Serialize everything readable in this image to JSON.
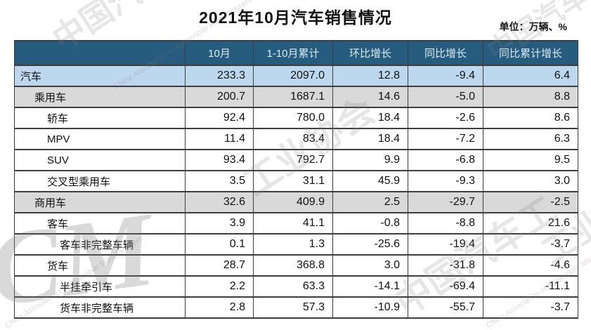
{
  "title": "2021年10月汽车销售情况",
  "unit_label": "单位：万辆、%",
  "watermark": {
    "cn": "中国汽车工业协会",
    "cn_short": "工业协会",
    "cn_mid": "中国汽车工",
    "en": "China Association of Automobile Manufacturers",
    "logo": "CM"
  },
  "colors": {
    "header_bg": "#265C7D",
    "header_text": "#DCEAF5",
    "row_highlight_blue": "#BDD7EE",
    "row_highlight_gray": "#D9D9D9",
    "border": "#3D3D3D"
  },
  "chart_data": {
    "type": "table",
    "title": "2021年10月汽车销售情况",
    "unit": "万辆、%",
    "columns": [
      "",
      "10月",
      "1-10月累计",
      "环比增长",
      "同比增长",
      "同比累计增长"
    ],
    "rows": [
      {
        "label": "汽车",
        "indent": 0,
        "highlight": "blue",
        "values": [
          "233.3",
          "2097.0",
          "12.8",
          "-9.4",
          "6.4"
        ]
      },
      {
        "label": "乘用车",
        "indent": 1,
        "highlight": "gray",
        "values": [
          "200.7",
          "1687.1",
          "14.6",
          "-5.0",
          "8.8"
        ]
      },
      {
        "label": "轿车",
        "indent": 2,
        "highlight": "white",
        "values": [
          "92.4",
          "780.0",
          "18.4",
          "-2.6",
          "8.6"
        ]
      },
      {
        "label": "MPV",
        "indent": 2,
        "highlight": "white",
        "values": [
          "11.4",
          "83.4",
          "18.4",
          "-7.2",
          "6.3"
        ]
      },
      {
        "label": "SUV",
        "indent": 2,
        "highlight": "white",
        "values": [
          "93.4",
          "792.7",
          "9.9",
          "-6.8",
          "9.5"
        ]
      },
      {
        "label": "交叉型乘用车",
        "indent": 2,
        "highlight": "white",
        "values": [
          "3.5",
          "31.1",
          "45.9",
          "-9.3",
          "3.0"
        ]
      },
      {
        "label": "商用车",
        "indent": 1,
        "highlight": "gray",
        "values": [
          "32.6",
          "409.9",
          "2.5",
          "-29.7",
          "-2.5"
        ]
      },
      {
        "label": "客车",
        "indent": 2,
        "highlight": "white",
        "values": [
          "3.9",
          "41.1",
          "-0.8",
          "-8.8",
          "21.6"
        ]
      },
      {
        "label": "客车非完整车辆",
        "indent": 3,
        "highlight": "white",
        "values": [
          "0.1",
          "1.3",
          "-25.6",
          "-19.4",
          "-3.7"
        ]
      },
      {
        "label": "货车",
        "indent": 2,
        "highlight": "white",
        "values": [
          "28.7",
          "368.8",
          "3.0",
          "-31.8",
          "-4.6"
        ]
      },
      {
        "label": "半挂牵引车",
        "indent": 3,
        "highlight": "white",
        "values": [
          "2.2",
          "63.3",
          "-14.1",
          "-69.4",
          "-11.1"
        ]
      },
      {
        "label": "货车非完整车辆",
        "indent": 3,
        "highlight": "white",
        "values": [
          "2.8",
          "57.3",
          "-10.9",
          "-55.7",
          "-3.7"
        ]
      }
    ]
  }
}
